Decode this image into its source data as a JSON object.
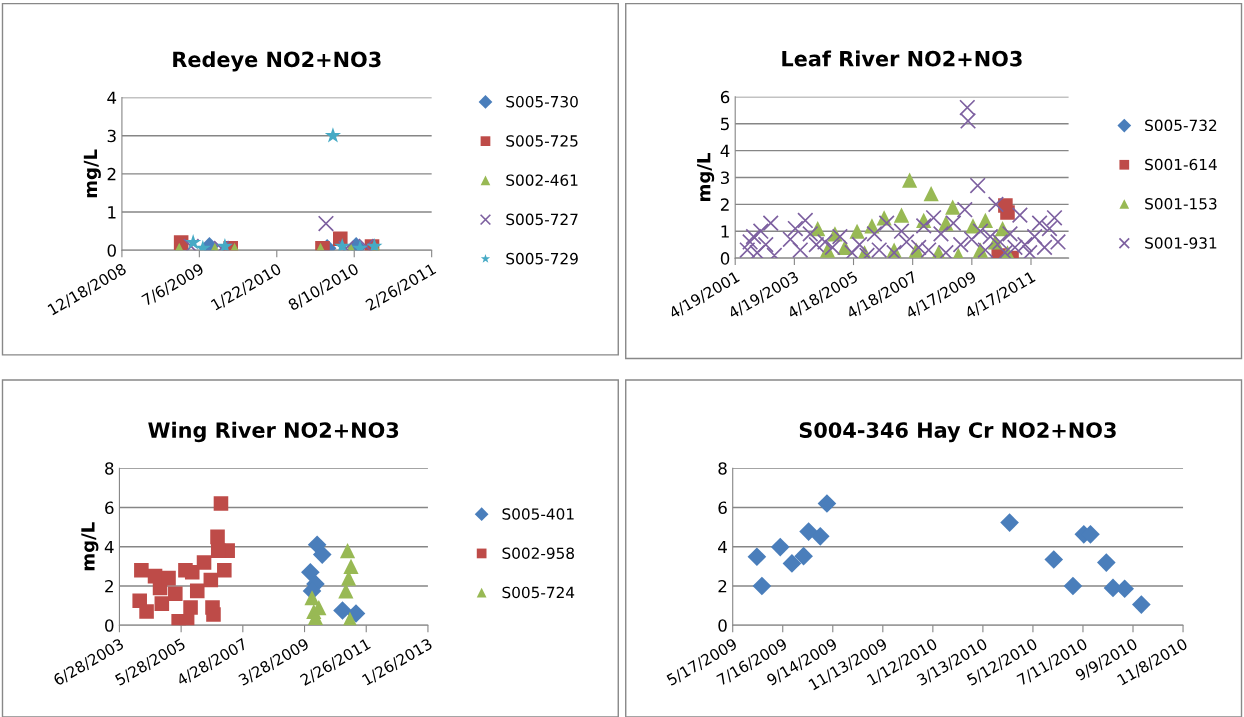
{
  "chart_data": [
    {
      "type": "scatter",
      "title": "Redeye NO2+NO3",
      "ylabel": "mg/L",
      "xlim": [
        "2008-12-18",
        "2011-02-26"
      ],
      "ylim": [
        0,
        4
      ],
      "yticks": [
        0,
        1,
        2,
        3,
        4
      ],
      "xticks": [
        {
          "value": "2008-12-18",
          "label": "12/18/2008"
        },
        {
          "value": "2009-07-06",
          "label": "7/6/2009"
        },
        {
          "value": "2010-01-22",
          "label": "1/22/2010"
        },
        {
          "value": "2010-08-10",
          "label": "8/10/2010"
        },
        {
          "value": "2011-02-26",
          "label": "2/26/2011"
        }
      ],
      "grid": "y",
      "legend": "right",
      "series": [
        {
          "name": "S005-730",
          "color": "#4a7ebb",
          "marker": "diamond",
          "x": [
            "2009-08-01",
            "2010-06-01",
            "2010-08-15"
          ],
          "values": [
            0.1,
            0.05,
            0.1
          ]
        },
        {
          "name": "S005-725",
          "color": "#be4b48",
          "marker": "square",
          "x": [
            "2009-05-20",
            "2009-09-25",
            "2010-05-20",
            "2010-07-05",
            "2010-09-25"
          ],
          "values": [
            0.2,
            0.05,
            0.05,
            0.3,
            0.1
          ]
        },
        {
          "name": "S002-461",
          "color": "#98b954",
          "marker": "triangle",
          "x": [
            "2009-05-15",
            "2009-08-15",
            "2009-10-05",
            "2010-05-15",
            "2010-08-01",
            "2010-10-05"
          ],
          "values": [
            0.0,
            0.0,
            0.0,
            0.0,
            0.0,
            0.0
          ]
        },
        {
          "name": "S005-727",
          "color": "#7d60a0",
          "marker": "cross",
          "x": [
            "2009-06-15",
            "2009-09-01",
            "2010-05-29",
            "2010-07-20",
            "2010-09-10"
          ],
          "values": [
            0.1,
            0.05,
            0.7,
            0.05,
            0.1
          ]
        },
        {
          "name": "S005-729",
          "color": "#46aac5",
          "marker": "star",
          "x": [
            "2009-06-20",
            "2009-07-15",
            "2009-09-10",
            "2010-06-16",
            "2010-07-10",
            "2010-08-25",
            "2010-10-01"
          ],
          "values": [
            0.2,
            0.05,
            0.1,
            3.0,
            0.1,
            0.05,
            0.1
          ]
        }
      ]
    },
    {
      "type": "scatter",
      "title": "Leaf River NO2+NO3",
      "ylabel": "mg/L",
      "xlim": [
        "2001-04-19",
        "2012-07-24"
      ],
      "ylim": [
        0,
        6
      ],
      "yticks": [
        0,
        1,
        2,
        3,
        4,
        5,
        6
      ],
      "xticks": [
        {
          "value": "2001-04-19",
          "label": "4/19/2001"
        },
        {
          "value": "2003-04-19",
          "label": "4/19/2003"
        },
        {
          "value": "2005-04-18",
          "label": "4/18/2005"
        },
        {
          "value": "2007-04-18",
          "label": "4/18/2007"
        },
        {
          "value": "2009-04-17",
          "label": "4/17/2009"
        },
        {
          "value": "2011-04-17",
          "label": "4/17/2011"
        }
      ],
      "grid": "y",
      "legend": "right",
      "series": [
        {
          "name": "S005-732",
          "color": "#4a7ebb",
          "marker": "diamond"
        },
        {
          "name": "S001-614",
          "color": "#be4b48",
          "marker": "square",
          "x": [
            "2010-03-15",
            "2010-06-05",
            "2010-07-01",
            "2010-08-20"
          ],
          "values": [
            0.1,
            1.96,
            1.7,
            0.0
          ]
        },
        {
          "name": "S001-153",
          "color": "#98b954",
          "marker": "triangle",
          "x": [
            "2004-02-01",
            "2004-06-01",
            "2004-09-01",
            "2005-01-01",
            "2005-06-01",
            "2005-09-01",
            "2005-12-01",
            "2006-05-01",
            "2006-09-01",
            "2006-12-01",
            "2007-03-11",
            "2007-06-01",
            "2007-09-01",
            "2007-12-02",
            "2008-03-01",
            "2008-06-01",
            "2008-08-24",
            "2008-11-01",
            "2009-05-01",
            "2009-08-01",
            "2009-10-01",
            "2010-02-01",
            "2010-05-01",
            "2010-07-01"
          ],
          "values": [
            1.1,
            0.3,
            0.9,
            0.4,
            1.0,
            0.2,
            1.2,
            1.5,
            0.3,
            1.6,
            2.9,
            0.3,
            1.4,
            2.4,
            0.2,
            1.3,
            1.9,
            0.1,
            1.2,
            0.3,
            1.4,
            0.6,
            1.1,
            0.2
          ]
        },
        {
          "name": "S001-931",
          "color": "#7d60a0",
          "marker": "cross",
          "x": [
            "2001-09-15",
            "2001-10-20",
            "2001-12-01",
            "2002-01-15",
            "2002-03-01",
            "2002-05-01",
            "2002-07-01",
            "2002-08-15",
            "2003-03-01",
            "2003-05-01",
            "2003-07-01",
            "2003-09-01",
            "2003-11-01",
            "2004-01-15",
            "2004-05-01",
            "2004-08-01",
            "2004-11-01",
            "2005-04-01",
            "2005-07-01",
            "2005-10-01",
            "2006-01-01",
            "2006-03-01",
            "2006-06-01",
            "2006-09-01",
            "2006-12-01",
            "2007-02-01",
            "2007-07-01",
            "2007-09-01",
            "2007-11-01",
            "2008-01-01",
            "2008-04-01",
            "2008-06-01",
            "2008-09-01",
            "2008-12-01",
            "2009-01-20",
            "2009-02-20",
            "2009-03-01",
            "2009-04-15",
            "2009-06-28",
            "2009-08-01",
            "2009-10-01",
            "2009-12-01",
            "2010-02-08",
            "2010-04-01",
            "2010-06-01",
            "2010-08-01",
            "2010-10-01",
            "2010-12-01",
            "2011-02-01",
            "2011-04-01",
            "2011-06-01",
            "2011-08-01",
            "2011-10-01",
            "2011-12-01",
            "2012-02-01",
            "2012-03-15"
          ],
          "values": [
            0.3,
            0.6,
            0.8,
            0.2,
            1.0,
            0.5,
            1.3,
            0.1,
            0.7,
            1.1,
            0.3,
            1.4,
            0.9,
            0.5,
            0.6,
            0.4,
            0.8,
            0.2,
            0.5,
            0.1,
            0.9,
            0.3,
            1.3,
            0.2,
            1.0,
            0.6,
            0.4,
            1.2,
            0.3,
            1.5,
            0.9,
            0.2,
            1.3,
            0.5,
            1.8,
            5.6,
            5.1,
            0.7,
            2.7,
            1.0,
            0.3,
            0.8,
            2.0,
            0.6,
            0.2,
            0.9,
            0.4,
            1.6,
            0.5,
            0.2,
            0.8,
            1.3,
            0.4,
            1.1,
            1.5,
            0.6
          ]
        }
      ]
    },
    {
      "type": "scatter",
      "title": "Wing River NO2+NO3",
      "ylabel": "mg/L",
      "xlim": [
        "2003-06-28",
        "2013-01-26"
      ],
      "ylim": [
        0,
        8
      ],
      "yticks": [
        0,
        2,
        4,
        6,
        8
      ],
      "xticks": [
        {
          "value": "2003-06-28",
          "label": "6/28/2003"
        },
        {
          "value": "2005-05-28",
          "label": "5/28/2005"
        },
        {
          "value": "2007-04-28",
          "label": "4/28/2007"
        },
        {
          "value": "2009-03-28",
          "label": "3/28/2009"
        },
        {
          "value": "2011-02-26",
          "label": "2/26/2011"
        },
        {
          "value": "2013-01-26",
          "label": "1/26/2013"
        }
      ],
      "grid": "y",
      "legend": "right",
      "series": [
        {
          "name": "S005-401",
          "color": "#4a7ebb",
          "marker": "diamond",
          "x": [
            "2009-06-02",
            "2009-08-18",
            "2009-10-15",
            "2009-07-30",
            "2009-06-21",
            "2010-06-02",
            "2010-11-02"
          ],
          "values": [
            2.7,
            4.1,
            3.6,
            2.1,
            1.75,
            0.75,
            0.6
          ]
        },
        {
          "name": "S002-958",
          "color": "#be4b48",
          "marker": "square",
          "x": [
            "2004-03-03",
            "2004-02-13",
            "2004-05-01",
            "2004-08-05",
            "2004-10-01",
            "2004-10-21",
            "2005-01-05",
            "2005-03-23",
            "2005-04-30",
            "2005-08-04",
            "2005-07-16",
            "2005-10-01",
            "2005-09-12",
            "2005-11-27",
            "2006-02-12",
            "2006-04-30",
            "2006-05-19",
            "2006-05-30",
            "2006-07-15",
            "2006-08-23",
            "2006-09-30",
            "2006-11-07",
            "2006-07-23"
          ],
          "values": [
            2.8,
            1.25,
            0.7,
            2.5,
            1.9,
            1.1,
            2.4,
            1.6,
            0.2,
            0.2,
            2.8,
            2.7,
            0.9,
            1.75,
            3.2,
            2.3,
            0.9,
            0.55,
            4.5,
            6.2,
            2.8,
            3.8,
            3.8
          ]
        },
        {
          "name": "S005-724",
          "color": "#98b954",
          "marker": "triangle",
          "x": [
            "2009-06-21",
            "2009-07-11",
            "2009-07-30",
            "2009-09-06",
            "2010-07-29",
            "2010-09-06",
            "2010-08-10",
            "2010-07-10",
            "2010-08-25"
          ],
          "values": [
            1.4,
            0.7,
            0.4,
            0.9,
            3.8,
            3.0,
            2.4,
            1.75,
            0.3
          ]
        }
      ]
    },
    {
      "type": "scatter",
      "title": "S004-346 Hay Cr NO2+NO3",
      "xlim": [
        "2009-05-17",
        "2010-11-08"
      ],
      "ylim": [
        0,
        8
      ],
      "yticks": [
        0,
        2,
        4,
        6,
        8
      ],
      "xticks": [
        {
          "value": "2009-05-17",
          "label": "5/17/2009"
        },
        {
          "value": "2009-07-16",
          "label": "7/16/2009"
        },
        {
          "value": "2009-09-14",
          "label": "9/14/2009"
        },
        {
          "value": "2009-11-13",
          "label": "11/13/2009"
        },
        {
          "value": "2010-01-12",
          "label": "1/12/2010"
        },
        {
          "value": "2010-03-13",
          "label": "3/13/2010"
        },
        {
          "value": "2010-05-12",
          "label": "5/12/2010"
        },
        {
          "value": "2010-07-11",
          "label": "7/11/2010"
        },
        {
          "value": "2010-09-09",
          "label": "9/9/2010"
        },
        {
          "value": "2010-11-08",
          "label": "11/8/2010"
        }
      ],
      "grid": "y",
      "series": [
        {
          "color": "#4a7ebb",
          "marker": "diamond",
          "x": [
            "2009-06-15",
            "2009-06-21",
            "2009-07-13",
            "2009-07-27",
            "2009-08-10",
            "2009-08-16",
            "2009-08-30",
            "2009-09-07",
            "2010-04-14",
            "2010-06-06",
            "2010-06-29",
            "2010-07-12",
            "2010-07-20",
            "2010-08-08",
            "2010-08-16",
            "2010-08-30",
            "2010-09-19"
          ],
          "values": [
            3.49,
            2.0,
            3.98,
            3.15,
            3.52,
            4.77,
            4.53,
            6.2,
            5.23,
            3.35,
            2.0,
            4.63,
            4.63,
            3.19,
            1.9,
            1.86,
            1.05
          ]
        }
      ]
    }
  ]
}
